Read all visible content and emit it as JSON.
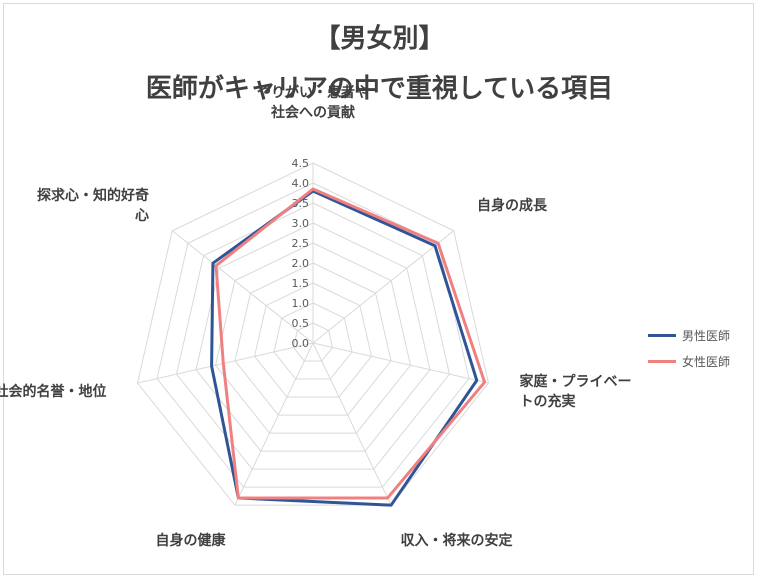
{
  "chart_data": {
    "type": "radar",
    "title_line1": "【男女別】",
    "title_line2": "医師がキャリアの中で重視している項目",
    "axes": [
      [
        "やりがい・患者や",
        "社会への貢献"
      ],
      [
        "自身の成長"
      ],
      [
        "家庭・プライベー",
        "トの充実"
      ],
      [
        "収入・将来の安定"
      ],
      [
        "自身の健康"
      ],
      [
        "社会的名誉・地位"
      ],
      [
        "探求心・知的好奇",
        "心"
      ]
    ],
    "r_ticks": [
      "0.0",
      "0.5",
      "1.0",
      "1.5",
      "2.0",
      "2.5",
      "3.0",
      "3.5",
      "4.0",
      "4.5"
    ],
    "r_range": [
      0,
      4.5
    ],
    "series": [
      {
        "name": "男性医師",
        "color": "#2f5597",
        "values": [
          3.8,
          3.9,
          4.2,
          4.5,
          4.3,
          2.6,
          3.2
        ]
      },
      {
        "name": "女性医師",
        "color": "#f08080",
        "values": [
          3.85,
          4.0,
          4.4,
          4.3,
          4.3,
          2.3,
          3.1
        ]
      }
    ],
    "legend_position": "right",
    "grid": true
  }
}
